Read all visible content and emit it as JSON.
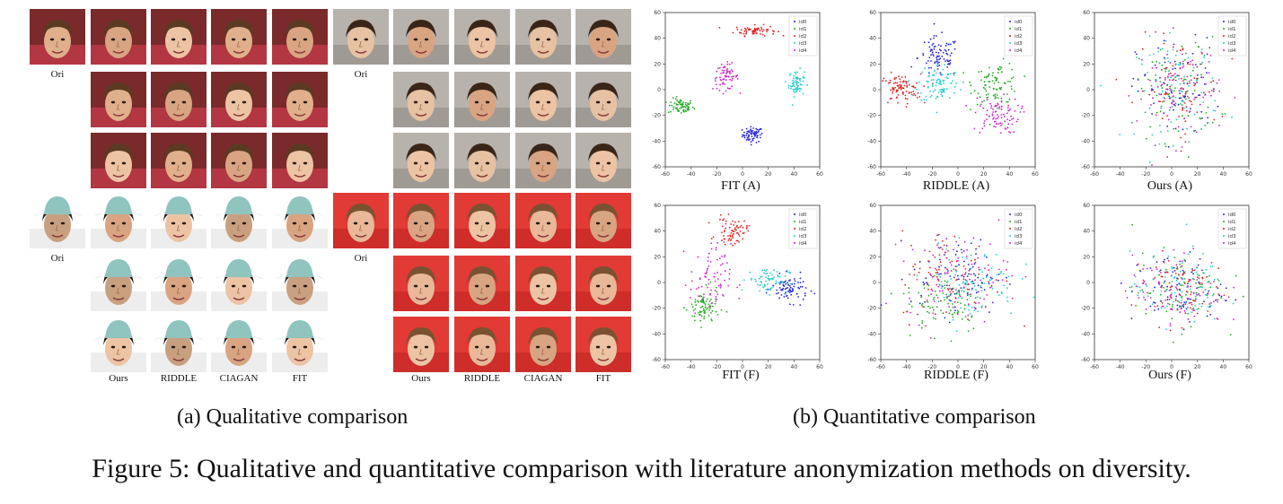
{
  "panel_a": {
    "caption": "(a) Qualitative comparison",
    "ori_label": "Ori",
    "method_labels": [
      "Ours",
      "RIDDLE",
      "CIAGAN",
      "FIT"
    ]
  },
  "panel_b": {
    "caption": "(b) Quantitative comparison"
  },
  "figure_caption": "Figure 5: Qualitative and quantitative comparison with literature anonymization methods on diversity.",
  "legend_entries": [
    "id0",
    "id1",
    "id2",
    "id3",
    "id4"
  ],
  "colors": {
    "id0": "#2222dd",
    "id1": "#22aa22",
    "id2": "#dd2222",
    "id3": "#22cccc",
    "id4": "#cc22cc"
  },
  "chart_data": [
    {
      "type": "scatter",
      "caption": "FIT (A)",
      "xlim": [
        -60,
        60
      ],
      "ylim": [
        -60,
        60
      ],
      "xticks": [
        -60,
        -40,
        -20,
        0,
        20,
        40,
        60
      ],
      "yticks": [
        -60,
        -40,
        -20,
        0,
        20,
        40,
        60
      ],
      "legend_position": "top-right",
      "clusters": [
        {
          "name": "id0",
          "cx": 8,
          "cy": -35,
          "sx": 4,
          "sy": 3,
          "n": 70
        },
        {
          "name": "id1",
          "cx": -48,
          "cy": -13,
          "sx": 5,
          "sy": 3,
          "n": 70
        },
        {
          "name": "id2",
          "cx": 10,
          "cy": 46,
          "sx": 8,
          "sy": 2,
          "n": 70
        },
        {
          "name": "id3",
          "cx": 42,
          "cy": 5,
          "sx": 3,
          "sy": 5,
          "n": 70
        },
        {
          "name": "id4",
          "cx": -13,
          "cy": 10,
          "sx": 5,
          "sy": 5,
          "n": 70
        }
      ]
    },
    {
      "type": "scatter",
      "caption": "RIDDLE (A)",
      "xlim": [
        -60,
        60
      ],
      "ylim": [
        -60,
        60
      ],
      "xticks": [
        -60,
        -40,
        -20,
        0,
        20,
        40,
        60
      ],
      "yticks": [
        -60,
        -40,
        -20,
        0,
        20,
        40,
        60
      ],
      "legend_position": "top-right",
      "clusters": [
        {
          "name": "id0",
          "cx": -15,
          "cy": 25,
          "sx": 8,
          "sy": 8,
          "n": 90
        },
        {
          "name": "id1",
          "cx": 30,
          "cy": 5,
          "sx": 9,
          "sy": 8,
          "n": 90
        },
        {
          "name": "id2",
          "cx": -45,
          "cy": 0,
          "sx": 8,
          "sy": 6,
          "n": 90
        },
        {
          "name": "id3",
          "cx": -15,
          "cy": 5,
          "sx": 8,
          "sy": 8,
          "n": 90
        },
        {
          "name": "id4",
          "cx": 30,
          "cy": -20,
          "sx": 9,
          "sy": 7,
          "n": 90
        }
      ]
    },
    {
      "type": "scatter",
      "caption": "Ours (A)",
      "xlim": [
        -60,
        60
      ],
      "ylim": [
        -60,
        60
      ],
      "xticks": [
        -60,
        -40,
        -20,
        0,
        20,
        40,
        60
      ],
      "yticks": [
        -60,
        -40,
        -20,
        0,
        20,
        40,
        60
      ],
      "legend_position": "top-right",
      "clusters": [
        {
          "name": "id0",
          "cx": 5,
          "cy": 0,
          "sx": 16,
          "sy": 20,
          "n": 80
        },
        {
          "name": "id1",
          "cx": 5,
          "cy": 0,
          "sx": 16,
          "sy": 20,
          "n": 80
        },
        {
          "name": "id2",
          "cx": 5,
          "cy": 0,
          "sx": 16,
          "sy": 20,
          "n": 80
        },
        {
          "name": "id3",
          "cx": 5,
          "cy": 0,
          "sx": 16,
          "sy": 20,
          "n": 80
        },
        {
          "name": "id4",
          "cx": 5,
          "cy": 0,
          "sx": 16,
          "sy": 20,
          "n": 80
        }
      ]
    },
    {
      "type": "scatter",
      "caption": "FIT (F)",
      "xlim": [
        -60,
        60
      ],
      "ylim": [
        -60,
        60
      ],
      "xticks": [
        -60,
        -40,
        -20,
        0,
        20,
        40,
        60
      ],
      "yticks": [
        -60,
        -40,
        -20,
        0,
        20,
        40,
        60
      ],
      "legend_position": "top-right",
      "clusters": [
        {
          "name": "id0",
          "cx": 37,
          "cy": -5,
          "sx": 7,
          "sy": 5,
          "n": 80
        },
        {
          "name": "id1",
          "cx": -30,
          "cy": -20,
          "sx": 6,
          "sy": 7,
          "n": 80
        },
        {
          "name": "id2",
          "cx": -8,
          "cy": 40,
          "sx": 6,
          "sy": 5,
          "n": 70
        },
        {
          "name": "id3",
          "cx": 20,
          "cy": 2,
          "sx": 8,
          "sy": 5,
          "n": 70
        },
        {
          "name": "id4",
          "cx": -25,
          "cy": 2,
          "sx": 8,
          "sy": 14,
          "n": 80
        }
      ]
    },
    {
      "type": "scatter",
      "caption": "RIDDLE (F)",
      "xlim": [
        -60,
        60
      ],
      "ylim": [
        -60,
        60
      ],
      "xticks": [
        -60,
        -40,
        -20,
        0,
        20,
        40,
        60
      ],
      "yticks": [
        -60,
        -40,
        -20,
        0,
        20,
        40,
        60
      ],
      "legend_position": "top-right",
      "clusters": [
        {
          "name": "id0",
          "cx": 0,
          "cy": 5,
          "sx": 18,
          "sy": 15,
          "n": 90
        },
        {
          "name": "id1",
          "cx": -10,
          "cy": -15,
          "sx": 16,
          "sy": 12,
          "n": 90
        },
        {
          "name": "id2",
          "cx": -5,
          "cy": 5,
          "sx": 20,
          "sy": 18,
          "n": 90
        },
        {
          "name": "id3",
          "cx": 10,
          "cy": 0,
          "sx": 18,
          "sy": 14,
          "n": 90
        },
        {
          "name": "id4",
          "cx": 0,
          "cy": 5,
          "sx": 20,
          "sy": 16,
          "n": 90
        }
      ]
    },
    {
      "type": "scatter",
      "caption": "Ours (F)",
      "xlim": [
        -60,
        60
      ],
      "ylim": [
        -60,
        60
      ],
      "xticks": [
        -60,
        -40,
        -20,
        0,
        20,
        40,
        60
      ],
      "yticks": [
        -60,
        -40,
        -20,
        0,
        20,
        40,
        60
      ],
      "legend_position": "top-right",
      "clusters": [
        {
          "name": "id0",
          "cx": 5,
          "cy": -5,
          "sx": 18,
          "sy": 14,
          "n": 80
        },
        {
          "name": "id1",
          "cx": 5,
          "cy": -5,
          "sx": 18,
          "sy": 14,
          "n": 80
        },
        {
          "name": "id2",
          "cx": 5,
          "cy": -5,
          "sx": 18,
          "sy": 14,
          "n": 80
        },
        {
          "name": "id3",
          "cx": 5,
          "cy": -5,
          "sx": 18,
          "sy": 14,
          "n": 80
        },
        {
          "name": "id4",
          "cx": 5,
          "cy": -5,
          "sx": 18,
          "sy": 14,
          "n": 80
        }
      ]
    }
  ]
}
